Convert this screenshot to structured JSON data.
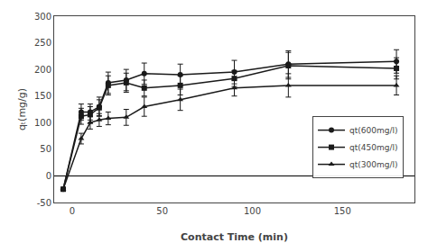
{
  "chart_data": {
    "type": "line",
    "xlabel": "Contact Time (min)",
    "ylabel": "qₜ(mg/g)",
    "x": [
      -5,
      5,
      10,
      15,
      20,
      30,
      40,
      60,
      90,
      120,
      180
    ],
    "series": [
      {
        "name": "qt(600mg/l)",
        "color": "#1a1a1a",
        "marker": "circle",
        "values": [
          -25,
          120,
          120,
          130,
          175,
          180,
          192,
          190,
          195,
          210,
          215
        ],
        "yerr": [
          0,
          15,
          15,
          18,
          20,
          20,
          20,
          20,
          22,
          25,
          22
        ]
      },
      {
        "name": "qt(450mg/l)",
        "color": "#1a1a1a",
        "marker": "square",
        "values": [
          -25,
          112,
          115,
          128,
          170,
          175,
          165,
          170,
          183,
          207,
          202
        ],
        "yerr": [
          0,
          15,
          15,
          15,
          18,
          18,
          15,
          18,
          15,
          25,
          20
        ]
      },
      {
        "name": "qt(300mg/l)",
        "color": "#1a1a1a",
        "marker": "triangle-up",
        "values": [
          -25,
          70,
          100,
          105,
          108,
          110,
          130,
          143,
          165,
          170,
          170
        ],
        "yerr": [
          0,
          10,
          12,
          12,
          12,
          15,
          18,
          20,
          15,
          22,
          18
        ]
      }
    ],
    "xlim": [
      -10,
      190
    ],
    "xticks": [
      0,
      50,
      100,
      150
    ],
    "ylim": [
      -50,
      300
    ],
    "yticks": [
      -50,
      0,
      50,
      100,
      150,
      200,
      250,
      300
    ],
    "grid": false,
    "legend": "lower right"
  }
}
